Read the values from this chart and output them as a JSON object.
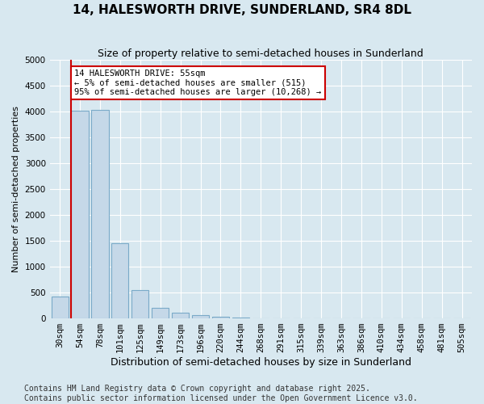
{
  "title": "14, HALESWORTH DRIVE, SUNDERLAND, SR4 8DL",
  "subtitle": "Size of property relative to semi-detached houses in Sunderland",
  "xlabel": "Distribution of semi-detached houses by size in Sunderland",
  "ylabel": "Number of semi-detached properties",
  "bar_values": [
    420,
    4020,
    4030,
    1460,
    550,
    200,
    110,
    60,
    40,
    20,
    5,
    0,
    0,
    0,
    0,
    0,
    0,
    0,
    0,
    0,
    0
  ],
  "categories": [
    "30sqm",
    "54sqm",
    "78sqm",
    "101sqm",
    "125sqm",
    "149sqm",
    "173sqm",
    "196sqm",
    "220sqm",
    "244sqm",
    "268sqm",
    "291sqm",
    "315sqm",
    "339sqm",
    "363sqm",
    "386sqm",
    "410sqm",
    "434sqm",
    "458sqm",
    "481sqm",
    "505sqm"
  ],
  "bar_color": "#c5d8e8",
  "bar_edge_color": "#7aaac8",
  "property_line_color": "#cc0000",
  "annotation_line1": "14 HALESWORTH DRIVE: 55sqm",
  "annotation_line2": "← 5% of semi-detached houses are smaller (515)",
  "annotation_line3": "95% of semi-detached houses are larger (10,268) →",
  "annotation_box_facecolor": "#ffffff",
  "annotation_box_edgecolor": "#cc0000",
  "ylim_max": 5000,
  "yticks": [
    0,
    500,
    1000,
    1500,
    2000,
    2500,
    3000,
    3500,
    4000,
    4500,
    5000
  ],
  "background_color": "#d8e8f0",
  "grid_color": "#ffffff",
  "footer_line1": "Contains HM Land Registry data © Crown copyright and database right 2025.",
  "footer_line2": "Contains public sector information licensed under the Open Government Licence v3.0.",
  "title_fontsize": 11,
  "subtitle_fontsize": 9,
  "xlabel_fontsize": 9,
  "ylabel_fontsize": 8,
  "tick_fontsize": 7.5,
  "annotation_fontsize": 7.5,
  "footer_fontsize": 7
}
